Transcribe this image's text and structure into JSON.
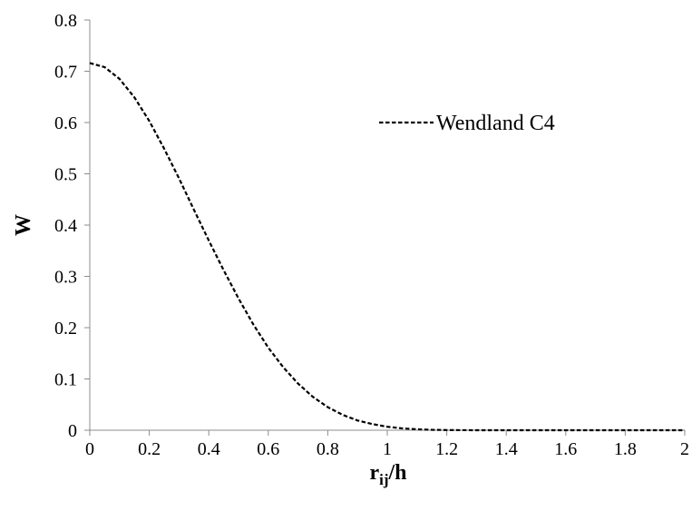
{
  "chart_data": {
    "type": "line",
    "title": "",
    "xlabel": {
      "main": "r",
      "sub": "ij",
      "rest": "/h"
    },
    "ylabel": "W",
    "xlim": [
      0,
      2
    ],
    "ylim": [
      0,
      0.8
    ],
    "x_ticks": [
      0,
      0.2,
      0.4,
      0.6,
      0.8,
      1,
      1.2,
      1.4,
      1.6,
      1.8,
      2
    ],
    "x_tick_labels": [
      "0",
      "0.2",
      "0.4",
      "0.6",
      "0.8",
      "1",
      "1.2",
      "1.4",
      "1.6",
      "1.8",
      "2"
    ],
    "y_ticks": [
      0,
      0.1,
      0.2,
      0.3,
      0.4,
      0.5,
      0.6,
      0.7,
      0.8
    ],
    "y_tick_labels": [
      "0",
      "0.1",
      "0.2",
      "0.3",
      "0.4",
      "0.5",
      "0.6",
      "0.7",
      "0.8"
    ],
    "grid": false,
    "legend_position": "top-right",
    "series": [
      {
        "name": "Wendland C4",
        "line_style": "dashed",
        "color": "#000000",
        "x": [
          0,
          0.05,
          0.1,
          0.15,
          0.2,
          0.25,
          0.3,
          0.35,
          0.4,
          0.45,
          0.5,
          0.55,
          0.6,
          0.65,
          0.7,
          0.75,
          0.8,
          0.85,
          0.9,
          0.95,
          1.0,
          1.05,
          1.1,
          1.15,
          1.2,
          1.25,
          1.3,
          1.35,
          1.4,
          1.45,
          1.5,
          1.55,
          1.6,
          1.7,
          1.8,
          1.9,
          2.0
        ],
        "y": [
          0.716,
          0.708,
          0.685,
          0.649,
          0.603,
          0.549,
          0.491,
          0.43,
          0.37,
          0.312,
          0.257,
          0.206,
          0.161,
          0.123,
          0.091,
          0.065,
          0.045,
          0.03,
          0.019,
          0.012,
          0.0068,
          0.0036,
          0.0018,
          0.0008,
          0.00033,
          0.00012,
          4e-05,
          1e-05,
          0.0,
          0.0,
          0.0,
          0.0,
          0.0,
          0.0,
          0.0,
          0.0,
          0.0
        ]
      }
    ]
  }
}
